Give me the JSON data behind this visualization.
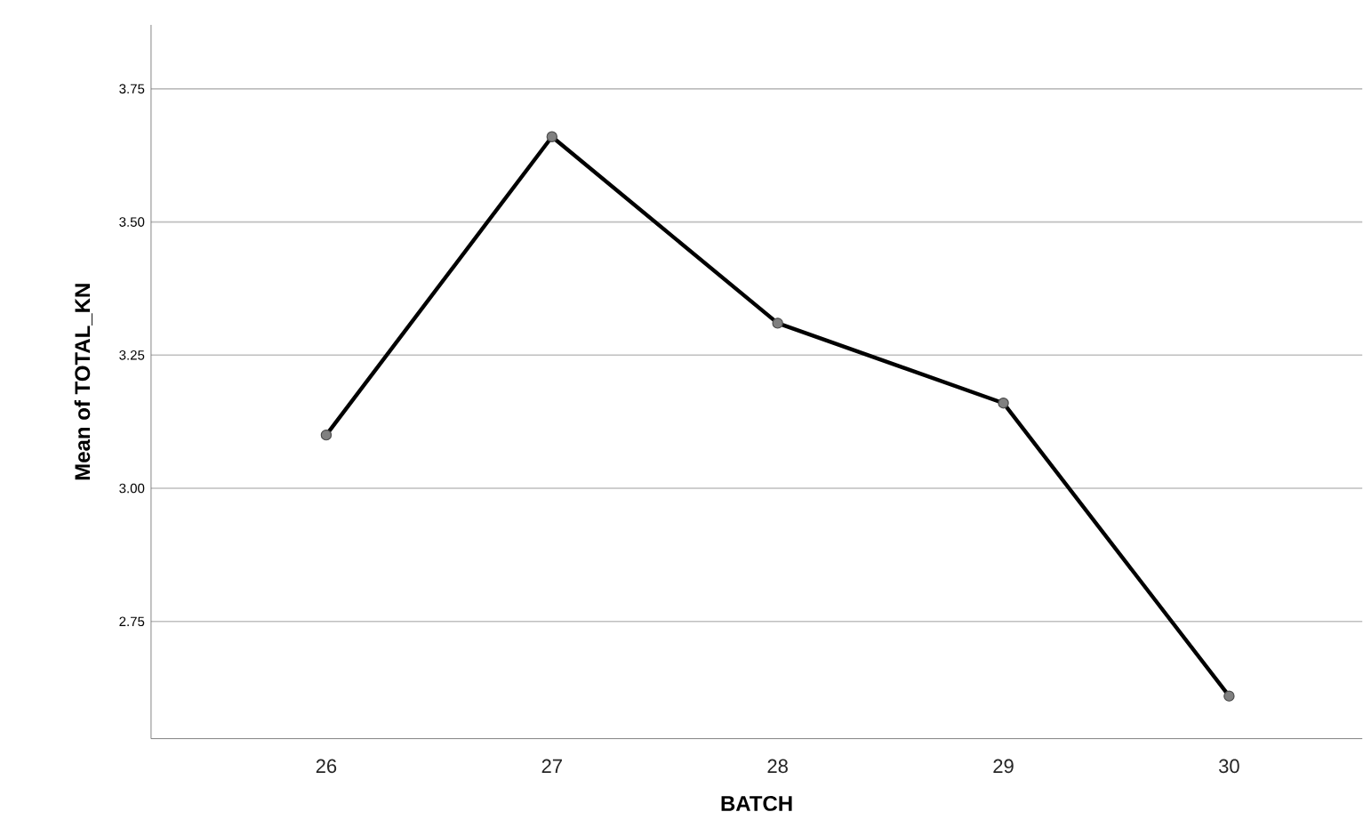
{
  "chart_data": {
    "type": "line",
    "xlabel": "BATCH",
    "ylabel": "Mean of TOTAL_KN",
    "categories": [
      "26",
      "27",
      "28",
      "29",
      "30"
    ],
    "series": [
      {
        "color": "#000000",
        "values": [
          3.1,
          3.66,
          3.31,
          3.16,
          2.61
        ]
      }
    ],
    "ylim": [
      2.53,
      3.87
    ],
    "yticks": [
      {
        "value": 2.75,
        "label": "2.75"
      },
      {
        "value": 3.0,
        "label": "3.00"
      },
      {
        "value": 3.25,
        "label": "3.25"
      },
      {
        "value": 3.5,
        "label": "3.50"
      },
      {
        "value": 3.75,
        "label": "3.75"
      }
    ],
    "grid": "y",
    "marker": "circle",
    "line_style": "solid"
  }
}
